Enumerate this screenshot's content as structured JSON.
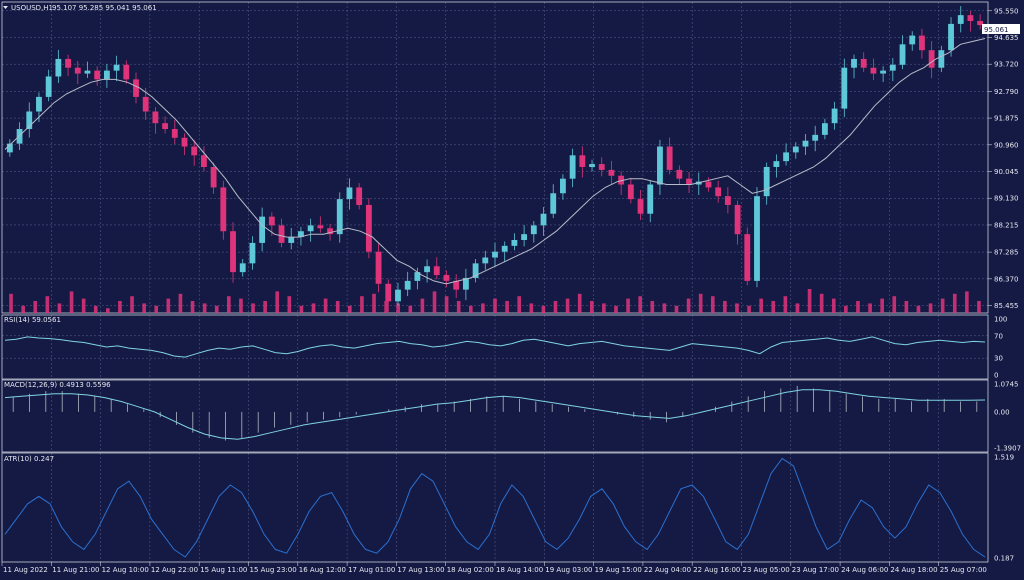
{
  "symbol_header": {
    "title": "USOUSD,H1",
    "ohlc": "95.107 95.285 95.041 95.061"
  },
  "colors": {
    "background": "#151a44",
    "grid": "#5a6090",
    "bull": "#5ec8d8",
    "bear": "#e0347a",
    "ma": "#b8bcc8",
    "rsi_line": "#7fd4e0",
    "macd_hist": "#c8ccd8",
    "macd_signal": "#7fd4e0",
    "atr_line": "#2a70d0",
    "pane_border": "#c8ccd8"
  },
  "price_axis": {
    "ticks": [
      "95.550",
      "94.635",
      "93.720",
      "92.790",
      "91.875",
      "90.960",
      "90.045",
      "89.130",
      "88.215",
      "87.285",
      "86.370",
      "85.455"
    ],
    "last_price_label": "95.061"
  },
  "time_axis": {
    "labels": [
      "11 Aug 2022",
      "11 Aug 21:00",
      "12 Aug 10:00",
      "12 Aug 22:00",
      "15 Aug 11:00",
      "15 Aug 23:00",
      "16 Aug 12:00",
      "17 Aug 01:00",
      "17 Aug 13:00",
      "18 Aug 02:00",
      "18 Aug 14:00",
      "19 Aug 03:00",
      "19 Aug 15:00",
      "22 Aug 04:00",
      "22 Aug 16:00",
      "23 Aug 05:00",
      "23 Aug 17:00",
      "24 Aug 06:00",
      "24 Aug 18:00",
      "25 Aug 07:00"
    ]
  },
  "rsi_pane": {
    "title": "RSI(14) 59.0561",
    "ticks": [
      "100",
      "70",
      "30",
      "0"
    ]
  },
  "macd_pane": {
    "title": "MACD(12,26,9) 0.4913 0.5596",
    "ticks": [
      "1.0745",
      "0.00",
      "-1.3907"
    ]
  },
  "atr_pane": {
    "title": "ATR(10) 0.247",
    "ticks": [
      "1.519",
      "0.187"
    ]
  },
  "chart_data": {
    "type": "candlestick",
    "symbol": "USOUSD",
    "timeframe": "H1",
    "price_range": [
      85.2,
      95.85
    ],
    "price_series": [
      91.0,
      91.5,
      92.1,
      92.6,
      93.3,
      93.9,
      93.6,
      93.4,
      93.5,
      93.2,
      93.5,
      93.7,
      93.2,
      92.6,
      92.1,
      91.7,
      91.5,
      91.2,
      90.9,
      90.6,
      90.2,
      89.5,
      88.0,
      86.6,
      86.9,
      87.6,
      88.5,
      88.2,
      87.6,
      87.8,
      88.0,
      88.2,
      88.1,
      87.9,
      89.1,
      89.5,
      88.9,
      87.3,
      86.2,
      85.6,
      86.0,
      86.3,
      86.6,
      86.8,
      86.5,
      86.3,
      86.0,
      86.4,
      86.9,
      87.1,
      87.3,
      87.5,
      87.7,
      87.9,
      88.2,
      88.6,
      89.3,
      89.8,
      90.6,
      90.2,
      90.3,
      90.1,
      89.9,
      89.6,
      89.1,
      88.6,
      89.6,
      90.9,
      90.1,
      89.8,
      89.6,
      89.7,
      89.5,
      89.2,
      88.9,
      87.9,
      86.3,
      89.2,
      90.2,
      90.4,
      90.7,
      90.9,
      91.1,
      91.3,
      91.7,
      92.2,
      93.6,
      93.9,
      93.6,
      93.4,
      93.5,
      93.7,
      94.4,
      94.7,
      94.2,
      93.6,
      94.2,
      95.1,
      95.4,
      95.2,
      95.06
    ],
    "ma_series": [
      90.8,
      91.2,
      91.6,
      92.0,
      92.4,
      92.7,
      92.9,
      93.1,
      93.2,
      93.2,
      93.1,
      92.9,
      92.6,
      92.2,
      91.8,
      91.3,
      90.8,
      90.3,
      89.8,
      89.2,
      88.7,
      88.2,
      87.9,
      87.8,
      87.8,
      87.9,
      87.9,
      88.0,
      88.1,
      88.0,
      87.8,
      87.4,
      87.0,
      86.8,
      86.5,
      86.3,
      86.2,
      86.3,
      86.4,
      86.6,
      86.8,
      87.0,
      87.2,
      87.4,
      87.7,
      88.0,
      88.4,
      88.8,
      89.2,
      89.5,
      89.7,
      89.8,
      89.8,
      89.7,
      89.6,
      89.6,
      89.6,
      89.7,
      89.8,
      89.9,
      89.6,
      89.3,
      89.4,
      89.6,
      89.8,
      90.0,
      90.2,
      90.5,
      90.9,
      91.3,
      91.8,
      92.3,
      92.7,
      93.1,
      93.4,
      93.6,
      93.9,
      94.1,
      94.4,
      94.5,
      94.6
    ],
    "volume": [
      0.8,
      0.3,
      0.5,
      0.7,
      0.4,
      0.9,
      0.6,
      0.3,
      0.2,
      0.5,
      0.7,
      0.4,
      0.3,
      0.6,
      0.8,
      0.5,
      0.4,
      0.3,
      0.7,
      0.6,
      0.4,
      0.5,
      0.9,
      0.7,
      0.3,
      0.4,
      0.6,
      0.5,
      0.3,
      0.7,
      0.8,
      0.5,
      0.4,
      0.3,
      0.6,
      0.9,
      0.7,
      0.5,
      0.3,
      0.4,
      0.6,
      0.5,
      0.7,
      0.4,
      0.3,
      0.5,
      0.6,
      0.8,
      0.5,
      0.4,
      0.3,
      0.6,
      0.7,
      0.5,
      0.4,
      0.3,
      0.6,
      0.8,
      0.7,
      0.5,
      0.4,
      0.3,
      0.6,
      0.5,
      0.7,
      0.4,
      1.0,
      0.8,
      0.6,
      0.3,
      0.5,
      0.4,
      0.6,
      0.7,
      0.5,
      0.3,
      0.4,
      0.6,
      0.8,
      0.9,
      0.5
    ],
    "rsi": [
      62,
      64,
      68,
      66,
      65,
      63,
      60,
      58,
      54,
      50,
      52,
      48,
      46,
      44,
      40,
      34,
      32,
      38,
      44,
      48,
      46,
      50,
      52,
      46,
      40,
      38,
      42,
      48,
      52,
      54,
      50,
      48,
      52,
      56,
      58,
      60,
      56,
      54,
      50,
      52,
      56,
      60,
      58,
      54,
      52,
      56,
      62,
      64,
      60,
      56,
      52,
      56,
      58,
      60,
      56,
      52,
      50,
      48,
      46,
      44,
      50,
      56,
      54,
      52,
      50,
      48,
      44,
      38,
      50,
      58,
      60,
      62,
      64,
      66,
      62,
      60,
      64,
      68,
      62,
      56,
      54,
      58,
      60,
      62,
      60,
      58,
      60,
      59
    ],
    "rsi_range": [
      0,
      100
    ],
    "macd_hist": [
      0.6,
      0.7,
      0.8,
      0.8,
      0.7,
      0.6,
      0.5,
      0.3,
      0.1,
      -0.2,
      -0.5,
      -0.8,
      -1.0,
      -1.1,
      -1.0,
      -0.8,
      -0.6,
      -0.5,
      -0.4,
      -0.3,
      -0.2,
      -0.1,
      0.0,
      0.1,
      0.2,
      0.3,
      0.3,
      0.4,
      0.5,
      0.6,
      0.6,
      0.5,
      0.4,
      0.3,
      0.2,
      0.1,
      0.0,
      -0.1,
      -0.2,
      -0.3,
      -0.4,
      -0.2,
      0.0,
      0.2,
      0.4,
      0.6,
      0.8,
      0.9,
      1.0,
      0.9,
      0.8,
      0.7,
      0.6,
      0.5,
      0.5,
      0.4,
      0.5,
      0.5,
      0.4,
      0.4
    ],
    "macd_signal": [
      0.55,
      0.6,
      0.65,
      0.7,
      0.7,
      0.65,
      0.55,
      0.4,
      0.2,
      0.0,
      -0.3,
      -0.6,
      -0.85,
      -1.0,
      -1.05,
      -0.95,
      -0.8,
      -0.65,
      -0.5,
      -0.4,
      -0.3,
      -0.2,
      -0.1,
      0.0,
      0.1,
      0.2,
      0.3,
      0.35,
      0.45,
      0.55,
      0.6,
      0.55,
      0.45,
      0.35,
      0.25,
      0.15,
      0.05,
      -0.05,
      -0.15,
      -0.2,
      -0.25,
      -0.15,
      0.0,
      0.15,
      0.3,
      0.45,
      0.6,
      0.75,
      0.85,
      0.85,
      0.8,
      0.7,
      0.6,
      0.55,
      0.5,
      0.45,
      0.45,
      0.45,
      0.45,
      0.46
    ],
    "macd_range": [
      -1.3907,
      1.0745
    ],
    "atr": [
      0.5,
      0.7,
      0.9,
      1.0,
      0.9,
      0.6,
      0.4,
      0.3,
      0.5,
      0.8,
      1.1,
      1.2,
      1.0,
      0.7,
      0.5,
      0.3,
      0.2,
      0.4,
      0.7,
      1.0,
      1.15,
      1.05,
      0.8,
      0.5,
      0.3,
      0.25,
      0.5,
      0.8,
      1.0,
      1.05,
      0.8,
      0.5,
      0.3,
      0.25,
      0.4,
      0.7,
      1.1,
      1.3,
      1.2,
      0.9,
      0.6,
      0.4,
      0.3,
      0.5,
      0.9,
      1.15,
      1.0,
      0.7,
      0.4,
      0.3,
      0.45,
      0.7,
      1.0,
      1.1,
      0.9,
      0.6,
      0.4,
      0.3,
      0.5,
      0.8,
      1.1,
      1.15,
      1.0,
      0.7,
      0.4,
      0.3,
      0.5,
      0.9,
      1.3,
      1.5,
      1.4,
      1.0,
      0.6,
      0.3,
      0.4,
      0.7,
      0.95,
      0.85,
      0.6,
      0.45,
      0.6,
      0.9,
      1.15,
      1.05,
      0.8,
      0.5,
      0.3,
      0.2
    ],
    "atr_range": [
      0.187,
      1.519
    ]
  }
}
